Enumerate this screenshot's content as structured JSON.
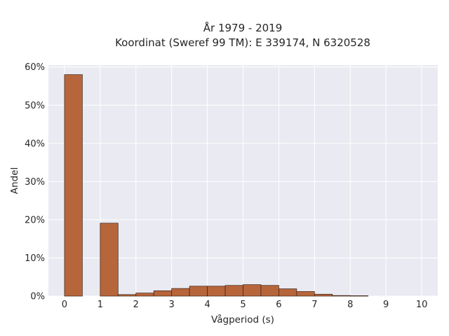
{
  "chart_data": {
    "type": "bar",
    "title": [
      "År 1979 - 2019",
      "Koordinat (Sweref 99 TM): E 339174, N 6320528"
    ],
    "xlabel": "Vågperiod (s)",
    "ylabel": "Andel",
    "xlim": [
      -0.45,
      10.45
    ],
    "ylim": [
      0,
      60.5
    ],
    "x_ticks": [
      0,
      1,
      2,
      3,
      4,
      5,
      6,
      7,
      8,
      9,
      10
    ],
    "y_ticks": [
      0,
      10,
      20,
      30,
      40,
      50,
      60
    ],
    "y_tick_labels": [
      "0%",
      "10%",
      "20%",
      "30%",
      "40%",
      "50%",
      "60%"
    ],
    "bin_width": 0.5,
    "bins": [
      {
        "x0": 0.0,
        "value": 58.0
      },
      {
        "x0": 0.5,
        "value": 0.0
      },
      {
        "x0": 1.0,
        "value": 19.1
      },
      {
        "x0": 1.5,
        "value": 0.4
      },
      {
        "x0": 2.0,
        "value": 0.8
      },
      {
        "x0": 2.5,
        "value": 1.4
      },
      {
        "x0": 3.0,
        "value": 2.0
      },
      {
        "x0": 3.5,
        "value": 2.6
      },
      {
        "x0": 4.0,
        "value": 2.6
      },
      {
        "x0": 4.5,
        "value": 2.8
      },
      {
        "x0": 5.0,
        "value": 3.0
      },
      {
        "x0": 5.5,
        "value": 2.8
      },
      {
        "x0": 6.0,
        "value": 1.9
      },
      {
        "x0": 6.5,
        "value": 1.2
      },
      {
        "x0": 7.0,
        "value": 0.5
      },
      {
        "x0": 7.5,
        "value": 0.15
      },
      {
        "x0": 8.0,
        "value": 0.1
      }
    ],
    "grid": true,
    "colors": {
      "plot_background": "#eaeaf2",
      "grid": "#ffffff",
      "bar_fill": "#b7653a",
      "bar_edge": "#3a2216"
    }
  }
}
